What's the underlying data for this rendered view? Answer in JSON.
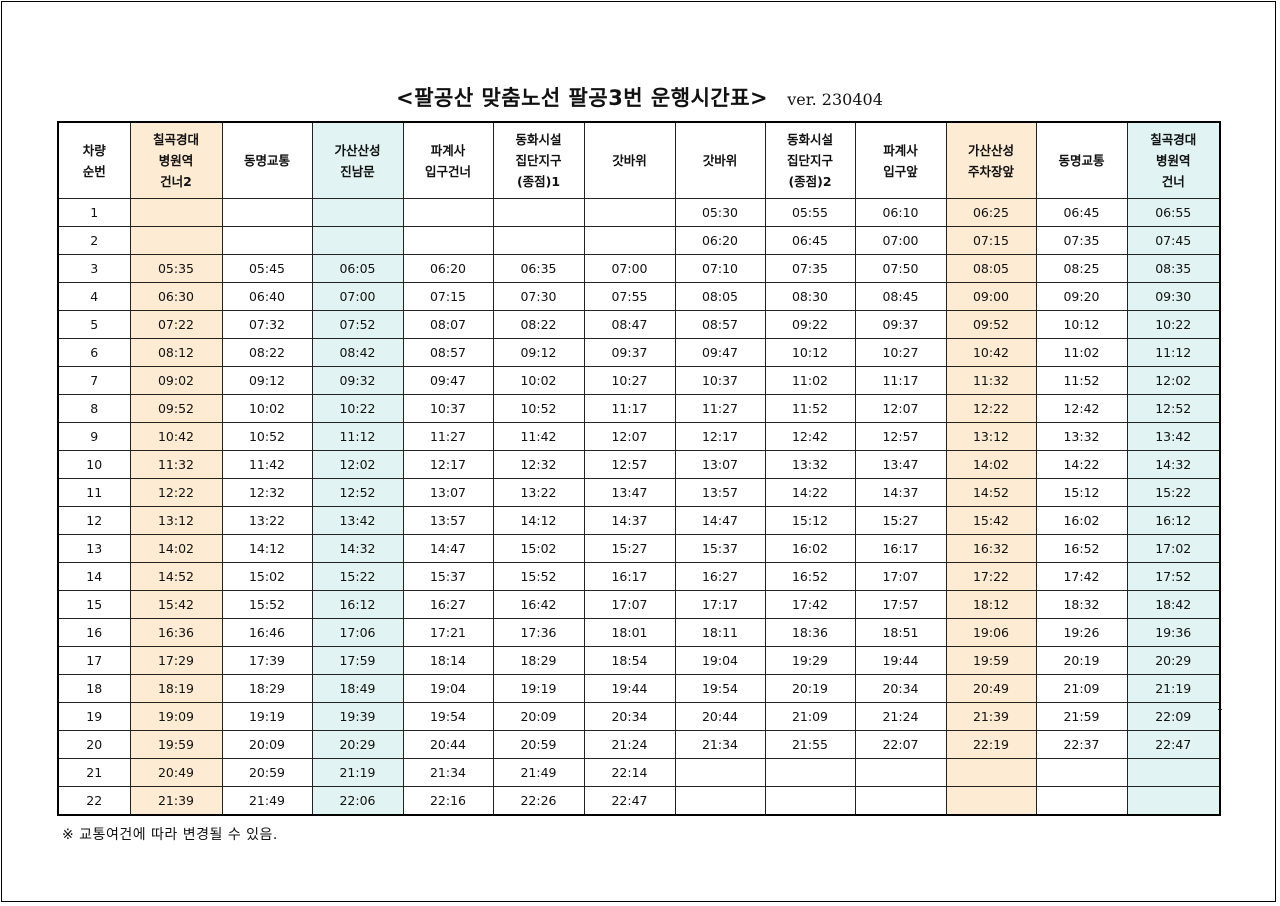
{
  "title": "<팔공산 맞춤노선 팔공3번 운행시간표>",
  "version": "ver. 230404",
  "columns": [
    {
      "lines": [
        "차량",
        "순번"
      ],
      "tone": "plain"
    },
    {
      "lines": [
        "칠곡경대",
        "병원역",
        "건너2"
      ],
      "tone": "orange"
    },
    {
      "lines": [
        "동명교통"
      ],
      "tone": "plain"
    },
    {
      "lines": [
        "가산산성",
        "진남문"
      ],
      "tone": "teal"
    },
    {
      "lines": [
        "파계사",
        "입구건너"
      ],
      "tone": "plain"
    },
    {
      "lines": [
        "동화시설",
        "집단지구",
        "(종점)1"
      ],
      "tone": "plain"
    },
    {
      "lines": [
        "갓바위"
      ],
      "tone": "plain"
    },
    {
      "lines": [
        "갓바위"
      ],
      "tone": "plain"
    },
    {
      "lines": [
        "동화시설",
        "집단지구",
        "(종점)2"
      ],
      "tone": "plain"
    },
    {
      "lines": [
        "파계사",
        "입구앞"
      ],
      "tone": "plain"
    },
    {
      "lines": [
        "가산산성",
        "주차장앞"
      ],
      "tone": "orange"
    },
    {
      "lines": [
        "동명교통"
      ],
      "tone": "plain"
    },
    {
      "lines": [
        "칠곡경대",
        "병원역",
        "건너"
      ],
      "tone": "teal"
    }
  ],
  "rows": [
    [
      "1",
      "",
      "",
      "",
      "",
      "",
      "",
      "05:30",
      "05:55",
      "06:10",
      "06:25",
      "06:45",
      "06:55"
    ],
    [
      "2",
      "",
      "",
      "",
      "",
      "",
      "",
      "06:20",
      "06:45",
      "07:00",
      "07:15",
      "07:35",
      "07:45"
    ],
    [
      "3",
      "05:35",
      "05:45",
      "06:05",
      "06:20",
      "06:35",
      "07:00",
      "07:10",
      "07:35",
      "07:50",
      "08:05",
      "08:25",
      "08:35"
    ],
    [
      "4",
      "06:30",
      "06:40",
      "07:00",
      "07:15",
      "07:30",
      "07:55",
      "08:05",
      "08:30",
      "08:45",
      "09:00",
      "09:20",
      "09:30"
    ],
    [
      "5",
      "07:22",
      "07:32",
      "07:52",
      "08:07",
      "08:22",
      "08:47",
      "08:57",
      "09:22",
      "09:37",
      "09:52",
      "10:12",
      "10:22"
    ],
    [
      "6",
      "08:12",
      "08:22",
      "08:42",
      "08:57",
      "09:12",
      "09:37",
      "09:47",
      "10:12",
      "10:27",
      "10:42",
      "11:02",
      "11:12"
    ],
    [
      "7",
      "09:02",
      "09:12",
      "09:32",
      "09:47",
      "10:02",
      "10:27",
      "10:37",
      "11:02",
      "11:17",
      "11:32",
      "11:52",
      "12:02"
    ],
    [
      "8",
      "09:52",
      "10:02",
      "10:22",
      "10:37",
      "10:52",
      "11:17",
      "11:27",
      "11:52",
      "12:07",
      "12:22",
      "12:42",
      "12:52"
    ],
    [
      "9",
      "10:42",
      "10:52",
      "11:12",
      "11:27",
      "11:42",
      "12:07",
      "12:17",
      "12:42",
      "12:57",
      "13:12",
      "13:32",
      "13:42"
    ],
    [
      "10",
      "11:32",
      "11:42",
      "12:02",
      "12:17",
      "12:32",
      "12:57",
      "13:07",
      "13:32",
      "13:47",
      "14:02",
      "14:22",
      "14:32"
    ],
    [
      "11",
      "12:22",
      "12:32",
      "12:52",
      "13:07",
      "13:22",
      "13:47",
      "13:57",
      "14:22",
      "14:37",
      "14:52",
      "15:12",
      "15:22"
    ],
    [
      "12",
      "13:12",
      "13:22",
      "13:42",
      "13:57",
      "14:12",
      "14:37",
      "14:47",
      "15:12",
      "15:27",
      "15:42",
      "16:02",
      "16:12"
    ],
    [
      "13",
      "14:02",
      "14:12",
      "14:32",
      "14:47",
      "15:02",
      "15:27",
      "15:37",
      "16:02",
      "16:17",
      "16:32",
      "16:52",
      "17:02"
    ],
    [
      "14",
      "14:52",
      "15:02",
      "15:22",
      "15:37",
      "15:52",
      "16:17",
      "16:27",
      "16:52",
      "17:07",
      "17:22",
      "17:42",
      "17:52"
    ],
    [
      "15",
      "15:42",
      "15:52",
      "16:12",
      "16:27",
      "16:42",
      "17:07",
      "17:17",
      "17:42",
      "17:57",
      "18:12",
      "18:32",
      "18:42"
    ],
    [
      "16",
      "16:36",
      "16:46",
      "17:06",
      "17:21",
      "17:36",
      "18:01",
      "18:11",
      "18:36",
      "18:51",
      "19:06",
      "19:26",
      "19:36"
    ],
    [
      "17",
      "17:29",
      "17:39",
      "17:59",
      "18:14",
      "18:29",
      "18:54",
      "19:04",
      "19:29",
      "19:44",
      "19:59",
      "20:19",
      "20:29"
    ],
    [
      "18",
      "18:19",
      "18:29",
      "18:49",
      "19:04",
      "19:19",
      "19:44",
      "19:54",
      "20:19",
      "20:34",
      "20:49",
      "21:09",
      "21:19"
    ],
    [
      "19",
      "19:09",
      "19:19",
      "19:39",
      "19:54",
      "20:09",
      "20:34",
      "20:44",
      "21:09",
      "21:24",
      "21:39",
      "21:59",
      "22:09"
    ],
    [
      "20",
      "19:59",
      "20:09",
      "20:29",
      "20:44",
      "20:59",
      "21:24",
      "21:34",
      "21:55",
      "22:07",
      "22:19",
      "22:37",
      "22:47"
    ],
    [
      "21",
      "20:49",
      "20:59",
      "21:19",
      "21:34",
      "21:49",
      "22:14",
      "",
      "",
      "",
      "",
      "",
      ""
    ],
    [
      "22",
      "21:39",
      "21:49",
      "22:06",
      "22:16",
      "22:26",
      "22:47",
      "",
      "",
      "",
      "",
      "",
      ""
    ]
  ],
  "footnote": "※ 교통여건에 따라 변경될 수 있음.",
  "colors": {
    "orange": "#fdebd3",
    "teal": "#e1f3f2",
    "border": "#222222"
  }
}
